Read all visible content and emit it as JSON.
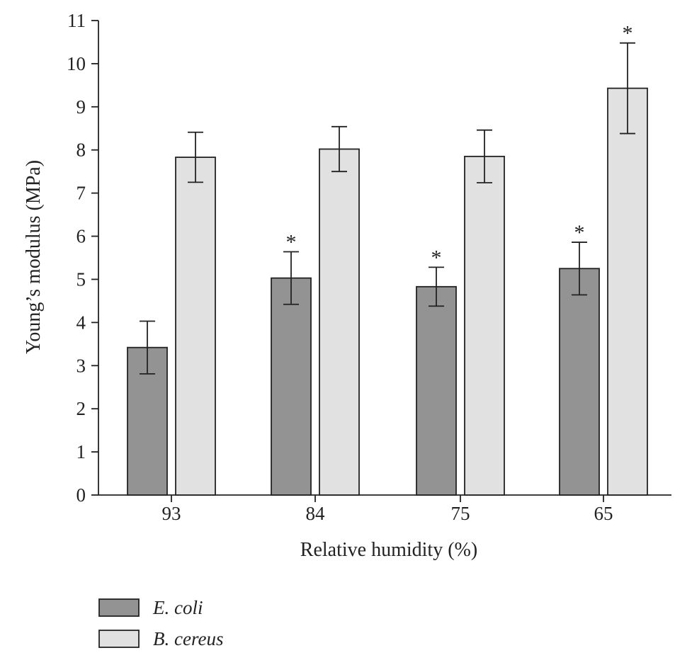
{
  "chart_data": {
    "type": "bar",
    "title": "",
    "xlabel": "Relative humidity (%)",
    "ylabel": "Young’s modulus (MPa)",
    "ylim": [
      0,
      11
    ],
    "yticks": [
      0,
      1,
      2,
      3,
      4,
      5,
      6,
      7,
      8,
      9,
      10,
      11
    ],
    "categories": [
      "93",
      "84",
      "75",
      "65"
    ],
    "significance_marker": "*",
    "series": [
      {
        "name": "E. coli",
        "color": "#939393",
        "values": [
          3.42,
          5.03,
          4.83,
          5.25
        ],
        "errors": [
          0.61,
          0.61,
          0.45,
          0.61
        ],
        "significant": [
          false,
          true,
          true,
          true
        ]
      },
      {
        "name": "B. cereus",
        "color": "#e1e1e1",
        "values": [
          7.83,
          8.02,
          7.85,
          9.43
        ],
        "errors": [
          0.58,
          0.52,
          0.61,
          1.05
        ],
        "significant": [
          false,
          false,
          false,
          true
        ]
      }
    ],
    "legend_position": "bottom-left"
  }
}
